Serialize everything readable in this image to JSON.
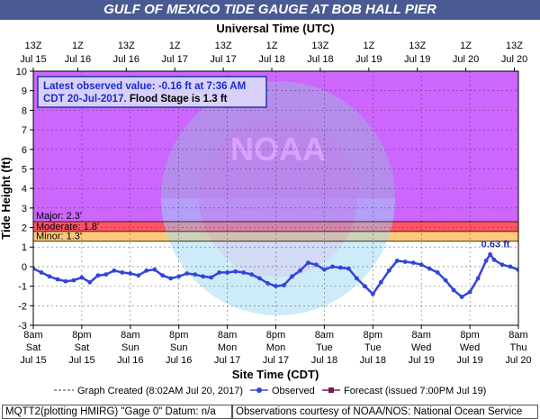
{
  "title": "GULF OF MEXICO TIDE GAUGE AT BOB HALL PIER",
  "footer": {
    "left": "MQTT2(plotting HMIRG) \"Gage 0\" Datum: n/a",
    "right": "Observations courtesy of NOAA/NOS: National Ocean Service"
  },
  "legend": {
    "created": "Graph Created (8:02AM Jul 20, 2017)",
    "observed": "Observed",
    "forecast": "Forecast (issued 7:00PM Jul 19)"
  },
  "watermark": "NOAA",
  "chart_data": {
    "type": "line",
    "top_axis_title": "Universal Time (UTC)",
    "xlabel": "Site Time (CDT)",
    "ylabel": "Tide Height (ft)",
    "ylim": [
      -3,
      10
    ],
    "yticks": [
      -3,
      -2,
      -1,
      0,
      1,
      2,
      3,
      4,
      5,
      6,
      7,
      8,
      9,
      10
    ],
    "x_range_hours": [
      0,
      120
    ],
    "top_ticks": [
      {
        "hour": 0,
        "line1": "13Z",
        "line2": "Jul 15"
      },
      {
        "hour": 11,
        "line1": "1Z",
        "line2": "Jul 16"
      },
      {
        "hour": 23,
        "line1": "13Z",
        "line2": "Jul 16"
      },
      {
        "hour": 35,
        "line1": "1Z",
        "line2": "Jul 17"
      },
      {
        "hour": 47,
        "line1": "13Z",
        "line2": "Jul 17"
      },
      {
        "hour": 59,
        "line1": "1Z",
        "line2": "Jul 18"
      },
      {
        "hour": 71,
        "line1": "13Z",
        "line2": "Jul 18"
      },
      {
        "hour": 83,
        "line1": "1Z",
        "line2": "Jul 19"
      },
      {
        "hour": 95,
        "line1": "13Z",
        "line2": "Jul 19"
      },
      {
        "hour": 107,
        "line1": "1Z",
        "line2": "Jul 20"
      },
      {
        "hour": 119,
        "line1": "13Z",
        "line2": "Jul 20"
      }
    ],
    "bottom_ticks": [
      {
        "hour": 0,
        "line1": "8am",
        "line2": "Sat",
        "line3": "Jul 15"
      },
      {
        "hour": 12,
        "line1": "8pm",
        "line2": "Sat",
        "line3": "Jul 15"
      },
      {
        "hour": 24,
        "line1": "8am",
        "line2": "Sun",
        "line3": "Jul 16"
      },
      {
        "hour": 36,
        "line1": "8pm",
        "line2": "Sun",
        "line3": "Jul 16"
      },
      {
        "hour": 48,
        "line1": "8am",
        "line2": "Mon",
        "line3": "Jul 17"
      },
      {
        "hour": 60,
        "line1": "8pm",
        "line2": "Mon",
        "line3": "Jul 17"
      },
      {
        "hour": 72,
        "line1": "8am",
        "line2": "Tue",
        "line3": "Jul 18"
      },
      {
        "hour": 84,
        "line1": "8pm",
        "line2": "Tue",
        "line3": "Jul 18"
      },
      {
        "hour": 96,
        "line1": "8am",
        "line2": "Wed",
        "line3": "Jul 19"
      },
      {
        "hour": 108,
        "line1": "8pm",
        "line2": "Wed",
        "line3": "Jul 19"
      },
      {
        "hour": 120,
        "line1": "8am",
        "line2": "Thu",
        "line3": "Jul 20"
      }
    ],
    "flood_categories": [
      {
        "name": "Major",
        "label": "Major: 2.3'",
        "from": 2.3,
        "to": 10,
        "color": "#cc66ff"
      },
      {
        "name": "Moderate",
        "label": "Moderate: 1.8'",
        "from": 1.8,
        "to": 2.3,
        "color": "#ff5566"
      },
      {
        "name": "Minor",
        "label": "Minor: 1.3'",
        "from": 1.3,
        "to": 1.8,
        "color": "#ffc97a"
      }
    ],
    "info_box": {
      "line1": "Latest observed value: -0.16 ft at 7:36 AM",
      "line2a": "CDT 20-Jul-2017.",
      "line2b": " Flood Stage is 1.3 ft"
    },
    "peak_label": {
      "text": "0.63 ft",
      "hour": 113,
      "value": 0.63
    },
    "colors": {
      "observed": "#3344dd",
      "forecast": "#7a1a55",
      "gridline": "#333333"
    },
    "series": [
      {
        "name": "Observed",
        "x": [
          0,
          2,
          4,
          6,
          8,
          10,
          12,
          14,
          16,
          18,
          20,
          22,
          24,
          26,
          28,
          30,
          32,
          34,
          36,
          38,
          40,
          42,
          44,
          46,
          48,
          50,
          52,
          54,
          56,
          58,
          60,
          62,
          64,
          66,
          68,
          70,
          72,
          74,
          76,
          78,
          80,
          82,
          84,
          86,
          88,
          90,
          92,
          94,
          96,
          98,
          100,
          102,
          104,
          106,
          108,
          110,
          112,
          113,
          114,
          116,
          118,
          120
        ],
        "values": [
          -0.1,
          -0.3,
          -0.5,
          -0.65,
          -0.75,
          -0.7,
          -0.55,
          -0.8,
          -0.45,
          -0.4,
          -0.2,
          -0.3,
          -0.35,
          -0.45,
          -0.2,
          -0.15,
          -0.45,
          -0.6,
          -0.5,
          -0.35,
          -0.4,
          -0.5,
          -0.55,
          -0.3,
          -0.3,
          -0.25,
          -0.3,
          -0.4,
          -0.6,
          -0.85,
          -1.0,
          -0.95,
          -0.5,
          -0.2,
          0.2,
          0.1,
          -0.15,
          0.0,
          -0.05,
          -0.1,
          -0.6,
          -1.0,
          -1.4,
          -0.8,
          -0.2,
          0.3,
          0.25,
          0.2,
          0.1,
          -0.1,
          -0.3,
          -0.7,
          -1.2,
          -1.55,
          -1.3,
          -0.6,
          0.3,
          0.63,
          0.35,
          0.1,
          0.0,
          -0.16
        ]
      }
    ]
  }
}
